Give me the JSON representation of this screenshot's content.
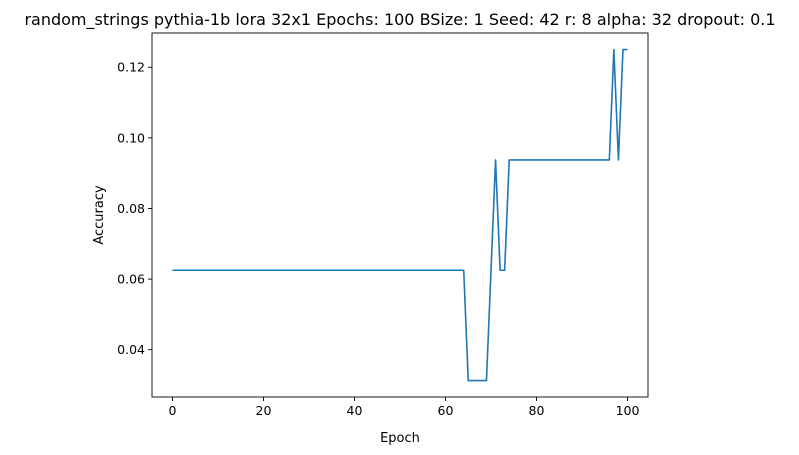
{
  "chart_data": {
    "type": "line",
    "title": "random_strings pythia-1b lora 32x1 Epochs: 100 BSize: 1 Seed: 42 r: 8 alpha: 32 dropout: 0.1",
    "xlabel": "Epoch",
    "ylabel": "Accuracy",
    "xlim": [
      -4.5,
      104.5
    ],
    "ylim": [
      0.0266,
      0.1297
    ],
    "xticks": [
      0,
      20,
      40,
      60,
      80,
      100
    ],
    "xtick_labels": [
      "0",
      "20",
      "40",
      "60",
      "80",
      "100"
    ],
    "yticks": [
      0.04,
      0.06,
      0.08,
      0.1,
      0.12
    ],
    "ytick_labels": [
      "0.04",
      "0.06",
      "0.08",
      "0.10",
      "0.12"
    ],
    "grid": false,
    "color": "#1f77b4",
    "series": [
      {
        "x": [
          0,
          64,
          65,
          69,
          70,
          71,
          72,
          73,
          74,
          96,
          97,
          98,
          99,
          100
        ],
        "values": [
          0.0625,
          0.0625,
          0.03125,
          0.03125,
          0.0625,
          0.09375,
          0.0625,
          0.0625,
          0.09375,
          0.09375,
          0.125,
          0.09375,
          0.125,
          0.125
        ]
      }
    ]
  }
}
